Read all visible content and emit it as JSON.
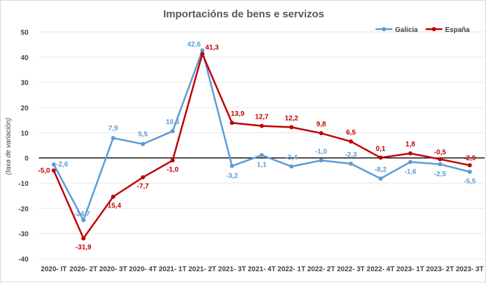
{
  "chart_data": {
    "type": "line",
    "title": "Importacións de bens e servizos",
    "xlabel": "",
    "ylabel": "(taxa de variación)",
    "ylim": [
      -40,
      50
    ],
    "yticks": [
      "50",
      "40",
      "30",
      "20",
      "10",
      "0",
      "-10",
      "-20",
      "-30",
      "-40"
    ],
    "ytick_values": [
      50,
      40,
      30,
      20,
      10,
      0,
      -10,
      -20,
      -30,
      -40
    ],
    "grid": true,
    "legend_position": "top-right",
    "categories": [
      "2020- IT",
      "2020- 2T",
      "2020- 3T",
      "2020- 4T",
      "2021- 1T",
      "2021- 2T",
      "2021- 3T",
      "2021- 4T",
      "2022- 1T",
      "2022- 2T",
      "2022- 3T",
      "2022- 4T",
      "2023- 1T",
      "2023- 2T",
      "2023- 3T"
    ],
    "series": [
      {
        "name": "Galicia",
        "color": "#5b9bd5",
        "values": [
          -2.6,
          -24.7,
          7.9,
          5.5,
          10.6,
          42.6,
          -3.2,
          1.1,
          -3.4,
          -1.0,
          -2.3,
          -8.2,
          -1.6,
          -2.5,
          -5.5
        ],
        "labels": [
          "-2,6",
          "-24,7",
          "7,9",
          "5,5",
          "10,6",
          "42,6",
          "-3,2",
          "1,1",
          "-3,4",
          "-1,0",
          "-2,3",
          "-8,2",
          "-1,6",
          "-2,5",
          "-5,5"
        ]
      },
      {
        "name": "España",
        "color": "#c00000",
        "values": [
          -5.0,
          -31.9,
          -15.4,
          -7.7,
          -1.0,
          41.3,
          13.9,
          12.7,
          12.2,
          9.8,
          6.5,
          0.1,
          1.8,
          -0.5,
          -2.9
        ],
        "labels": [
          "-5,0",
          "-31,9",
          "-15,4",
          "-7,7",
          "-1,0",
          "41,3",
          "13,9",
          "12,7",
          "12,2",
          "9,8",
          "6,5",
          "0,1",
          "1,8",
          "-0,5",
          "-2,9"
        ]
      }
    ]
  }
}
